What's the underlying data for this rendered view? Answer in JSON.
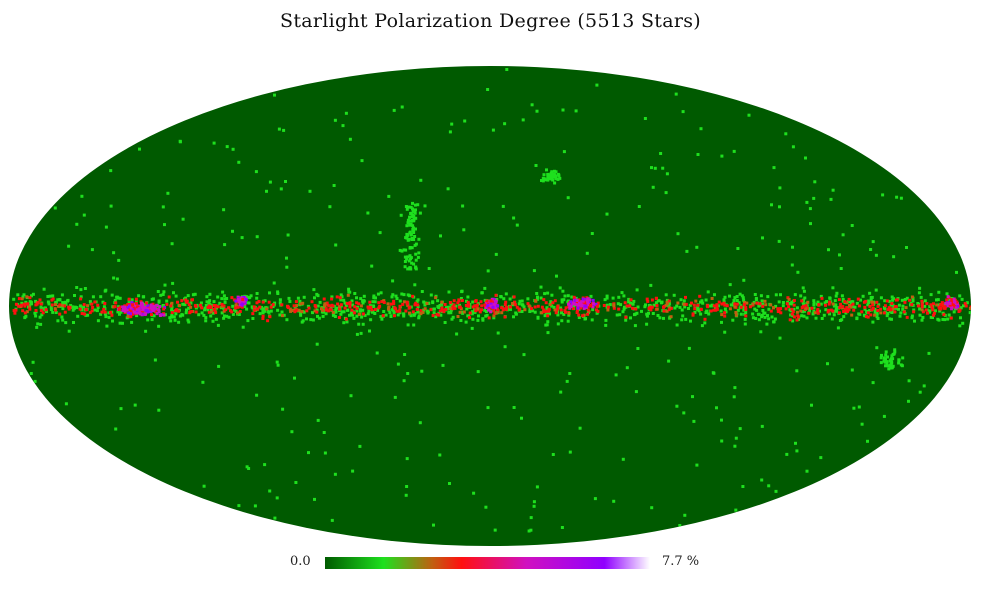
{
  "title": "Starlight Polarization Degree (5513 Stars)",
  "projection": "mollweide",
  "colors": {
    "background": "#ffffff",
    "map_fill": "#005a00",
    "low": "#005a00",
    "green": "#1ee01e",
    "orange": "#c06010",
    "red": "#ff1010",
    "magenta": "#d010c0",
    "violet": "#9000ff",
    "high": "#ffffff"
  },
  "colorbar": {
    "min_label": "0.0",
    "max_label": "7.7 %",
    "min": 0.0,
    "max": 7.7,
    "unit": "%"
  },
  "map_data": {
    "type": "healpix-mollweide",
    "quantity": "polarization degree",
    "star_count": 5513,
    "concentration": "galactic plane"
  }
}
